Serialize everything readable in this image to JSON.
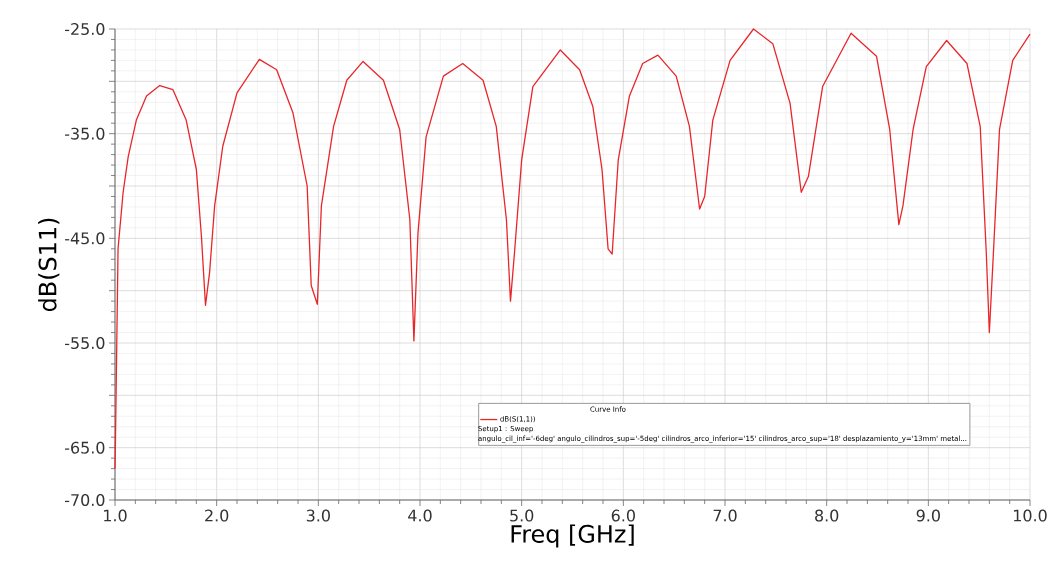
{
  "chart_data": {
    "type": "line",
    "xlabel": "Freq [GHz]",
    "ylabel": "dB(S11)",
    "legend_title": "Curve Info",
    "legend": "bottom",
    "grid": true,
    "line_style": "solid",
    "xlim": [
      1,
      10
    ],
    "ylim": [
      -70,
      -25
    ],
    "xticks": [
      {
        "value": 1,
        "label": "1.0"
      },
      {
        "value": 2,
        "label": "2.0"
      },
      {
        "value": 3,
        "label": "3.0"
      },
      {
        "value": 4,
        "label": "4.0"
      },
      {
        "value": 5,
        "label": "5.0"
      },
      {
        "value": 6,
        "label": "6.0"
      },
      {
        "value": 7,
        "label": "7.0"
      },
      {
        "value": 8,
        "label": "8.0"
      },
      {
        "value": 9,
        "label": "9.0"
      },
      {
        "value": 10,
        "label": "10.0"
      }
    ],
    "yticks": [
      {
        "value": -70,
        "label": "-70.0"
      },
      {
        "value": -65,
        "label": "-65.0"
      },
      {
        "value": -60,
        "label": null
      },
      {
        "value": -55,
        "label": "-55.0"
      },
      {
        "value": -50,
        "label": null
      },
      {
        "value": -45,
        "label": "-45.0"
      },
      {
        "value": -40,
        "label": null
      },
      {
        "value": -35,
        "label": "-35.0"
      },
      {
        "value": -30,
        "label": null
      },
      {
        "value": -25,
        "label": "-25.0"
      }
    ],
    "annotations": [
      "Setup1 : Sweep",
      "angulo_cil_inf='-6deg' angulo_cilindros_sup='-5deg' cilindros_arco_inferior='15' cilindros_arco_sup='18' desplazamiento_y='13mm' metal..."
    ],
    "series": [
      {
        "name": "dB(S(1,1))",
        "color": "#e8262a",
        "x": [
          1.0,
          1.005,
          1.017,
          1.03,
          1.08,
          1.13,
          1.21,
          1.31,
          1.44,
          1.57,
          1.7,
          1.8,
          1.85,
          1.89,
          1.93,
          1.98,
          2.06,
          2.2,
          2.42,
          2.59,
          2.75,
          2.89,
          2.93,
          2.99,
          3.03,
          3.15,
          3.28,
          3.44,
          3.64,
          3.8,
          3.9,
          3.94,
          3.98,
          4.06,
          4.23,
          4.42,
          4.62,
          4.75,
          4.85,
          4.89,
          4.93,
          5.0,
          5.11,
          5.38,
          5.57,
          5.7,
          5.79,
          5.85,
          5.89,
          5.95,
          6.06,
          6.19,
          6.34,
          6.52,
          6.65,
          6.75,
          6.8,
          6.88,
          7.05,
          7.28,
          7.47,
          7.64,
          7.75,
          7.82,
          7.96,
          8.24,
          8.49,
          8.62,
          8.71,
          8.75,
          8.85,
          8.98,
          9.18,
          9.38,
          9.51,
          9.57,
          9.6,
          9.64,
          9.7,
          9.83,
          10.0
        ],
        "values": [
          -67,
          -64,
          -55.3,
          -46,
          -40.6,
          -37.2,
          -33.7,
          -31.4,
          -30.4,
          -30.8,
          -33.7,
          -38.4,
          -44.8,
          -51.4,
          -48.3,
          -41.9,
          -36.2,
          -31.1,
          -27.9,
          -28.9,
          -33.0,
          -40.0,
          -49.5,
          -51.3,
          -41.9,
          -34.3,
          -29.9,
          -28.1,
          -29.9,
          -34.6,
          -43.2,
          -54.8,
          -44.5,
          -35.3,
          -29.5,
          -28.3,
          -29.9,
          -34.3,
          -43.2,
          -51.0,
          -46.3,
          -37.5,
          -30.5,
          -27.0,
          -28.9,
          -32.4,
          -38.4,
          -46.0,
          -46.5,
          -37.5,
          -31.4,
          -28.3,
          -27.5,
          -29.5,
          -34.3,
          -42.2,
          -41.0,
          -33.7,
          -28.0,
          -25.0,
          -26.4,
          -32.1,
          -40.6,
          -39.1,
          -30.5,
          -25.4,
          -27.6,
          -34.6,
          -43.7,
          -41.9,
          -34.6,
          -28.6,
          -26.1,
          -28.3,
          -34.3,
          -46.4,
          -54.0,
          -46.4,
          -34.6,
          -28.0,
          -25.5
        ]
      }
    ]
  }
}
